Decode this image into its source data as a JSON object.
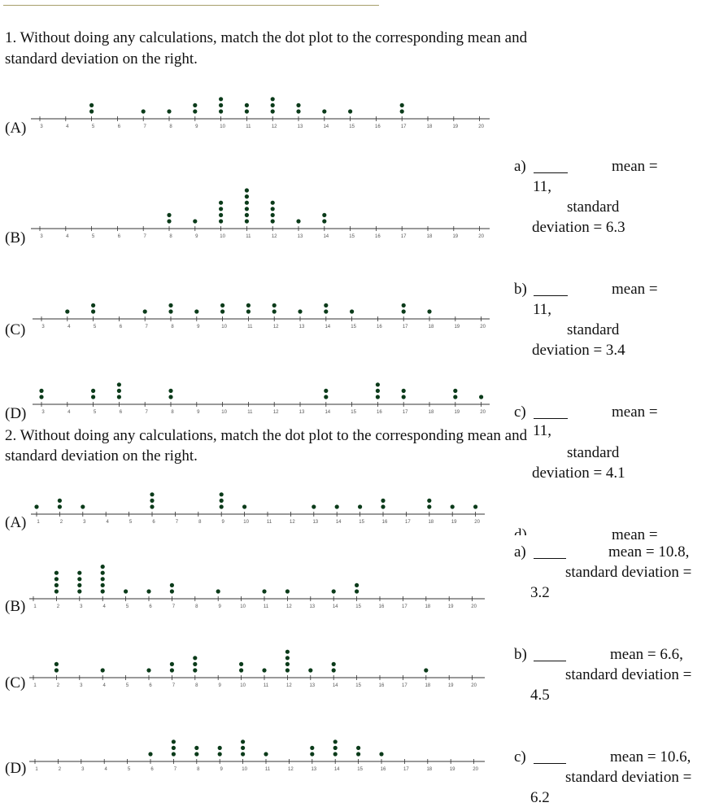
{
  "questions": [
    {
      "line1": "1. Without doing any calculations, match the dot plot to the corresponding mean and",
      "line2": "standard deviation on the right.",
      "plots": [
        {
          "label": "(A)",
          "ticks": [
            3,
            4,
            5,
            6,
            7,
            8,
            9,
            10,
            11,
            12,
            13,
            14,
            15,
            16,
            17,
            18,
            19,
            20
          ],
          "counts": {
            "5": 2,
            "7": 1,
            "8": 1,
            "9": 2,
            "10": 3,
            "11": 2,
            "12": 3,
            "13": 2,
            "14": 1,
            "15": 1,
            "17": 2
          }
        },
        {
          "label": "(B)",
          "ticks": [
            3,
            4,
            5,
            6,
            7,
            8,
            9,
            10,
            11,
            12,
            13,
            14,
            15,
            16,
            17,
            18,
            19,
            20
          ],
          "counts": {
            "8": 2,
            "9": 1,
            "10": 4,
            "11": 6,
            "12": 4,
            "13": 1,
            "14": 2
          }
        },
        {
          "label": "(C)",
          "ticks": [
            3,
            4,
            5,
            6,
            7,
            8,
            9,
            10,
            11,
            12,
            13,
            14,
            15,
            16,
            17,
            18,
            19,
            20
          ],
          "counts": {
            "4": 1,
            "5": 2,
            "7": 1,
            "8": 2,
            "9": 1,
            "10": 2,
            "11": 2,
            "12": 2,
            "13": 1,
            "14": 2,
            "15": 1,
            "17": 2,
            "18": 1
          }
        },
        {
          "label": "(D)",
          "ticks": [
            3,
            4,
            5,
            6,
            7,
            8,
            9,
            10,
            11,
            12,
            13,
            14,
            15,
            16,
            17,
            18,
            19,
            20
          ],
          "counts": {
            "3": 2,
            "5": 2,
            "6": 3,
            "8": 2,
            "14": 2,
            "16": 3,
            "17": 2,
            "19": 2,
            "20": 1
          }
        }
      ],
      "options": [
        {
          "letter": "a)",
          "mean_label": "mean =",
          "mean_value": "11,",
          "sd_label": "standard",
          "sd_value": "deviation = 6.3"
        },
        {
          "letter": "b)",
          "mean_label": "mean =",
          "mean_value": "11,",
          "sd_label": "standard",
          "sd_value": "deviation = 3.4"
        },
        {
          "letter": "c)",
          "mean_label": "mean =",
          "mean_value": "11,",
          "sd_label": "standard",
          "sd_value": "deviation = 4.1"
        },
        {
          "letter": "d)",
          "mean_label": "mean ="
        }
      ]
    },
    {
      "line1": "2. Without doing any calculations, match the dot plot to the corresponding mean and",
      "line2": "standard deviation on the right.",
      "plots": [
        {
          "label": "(A)",
          "ticks": [
            1,
            2,
            3,
            4,
            5,
            6,
            7,
            8,
            9,
            10,
            11,
            12,
            13,
            14,
            15,
            16,
            17,
            18,
            19,
            20
          ],
          "counts": {
            "1": 1,
            "2": 2,
            "3": 1,
            "6": 3,
            "9": 3,
            "10": 1,
            "13": 1,
            "14": 1,
            "15": 1,
            "16": 2,
            "18": 2,
            "19": 1,
            "20": 1
          }
        },
        {
          "label": "(B)",
          "ticks": [
            1,
            2,
            3,
            4,
            5,
            6,
            7,
            8,
            9,
            10,
            11,
            12,
            13,
            14,
            15,
            16,
            17,
            18,
            19,
            20
          ],
          "counts": {
            "2": 4,
            "3": 4,
            "4": 5,
            "5": 1,
            "6": 1,
            "7": 2,
            "9": 1,
            "11": 1,
            "12": 1,
            "14": 1,
            "15": 2
          }
        },
        {
          "label": "(C)",
          "ticks": [
            1,
            2,
            3,
            4,
            5,
            6,
            7,
            8,
            9,
            10,
            11,
            12,
            13,
            14,
            15,
            16,
            17,
            18,
            19,
            20
          ],
          "counts": {
            "2": 2,
            "4": 1,
            "6": 1,
            "7": 2,
            "8": 3,
            "10": 2,
            "11": 1,
            "12": 4,
            "13": 1,
            "14": 2,
            "18": 1
          }
        },
        {
          "label": "(D)",
          "ticks": [
            1,
            2,
            3,
            4,
            5,
            6,
            7,
            8,
            9,
            10,
            11,
            12,
            13,
            14,
            15,
            16,
            17,
            18,
            19,
            20
          ],
          "counts": {
            "6": 1,
            "7": 3,
            "8": 2,
            "9": 2,
            "10": 3,
            "11": 1,
            "13": 2,
            "14": 3,
            "15": 2,
            "16": 1
          }
        }
      ],
      "options": [
        {
          "letter": "a)",
          "mean_label": "mean = 10.8,",
          "sd_label": "standard deviation =",
          "sd_value": "3.2"
        },
        {
          "letter": "b)",
          "mean_label": "mean = 6.6,",
          "sd_label": "standard deviation =",
          "sd_value": "4.5"
        },
        {
          "letter": "c)",
          "mean_label": "mean = 10.6,",
          "sd_label": "standard deviation =",
          "sd_value": "6.2"
        }
      ]
    }
  ],
  "colors": {
    "dot": "#0b3b1a",
    "rule": "#a79e6a"
  }
}
